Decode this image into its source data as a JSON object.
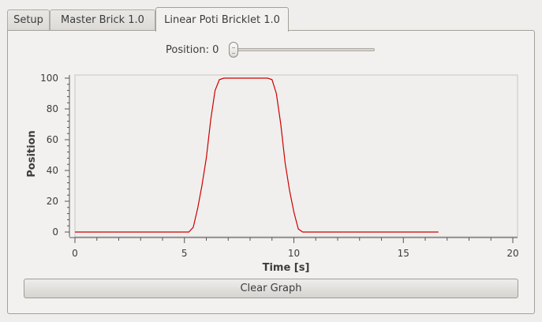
{
  "tabs": [
    {
      "label": "Setup",
      "active": false
    },
    {
      "label": "Master Brick 1.0",
      "active": false
    },
    {
      "label": "Linear Poti Bricklet 1.0",
      "active": true
    }
  ],
  "position_label": "Position: 0",
  "slider": {
    "value": 0,
    "min": 0,
    "max": 100
  },
  "clear_button": "Clear Graph",
  "colors": {
    "series": "#cc0000",
    "plot_background": "#f0efed"
  },
  "chart_data": {
    "type": "line",
    "xlabel": "Time [s]",
    "ylabel": "Position",
    "xlim": [
      0,
      20
    ],
    "ylim": [
      0,
      100
    ],
    "x_ticks": [
      0,
      5,
      10,
      15,
      20
    ],
    "y_ticks": [
      0,
      20,
      40,
      60,
      80,
      100
    ],
    "series": [
      {
        "x": [
          0,
          5.2,
          5.4,
          5.6,
          5.8,
          6.0,
          6.2,
          6.4,
          6.6,
          6.8,
          8.8,
          9.0,
          9.2,
          9.4,
          9.6,
          9.8,
          10.0,
          10.2,
          10.4,
          16.6
        ],
        "y": [
          0,
          0,
          3,
          15,
          30,
          48,
          73,
          92,
          99,
          100,
          100,
          99,
          90,
          70,
          45,
          27,
          13,
          2,
          0,
          0
        ]
      }
    ]
  }
}
